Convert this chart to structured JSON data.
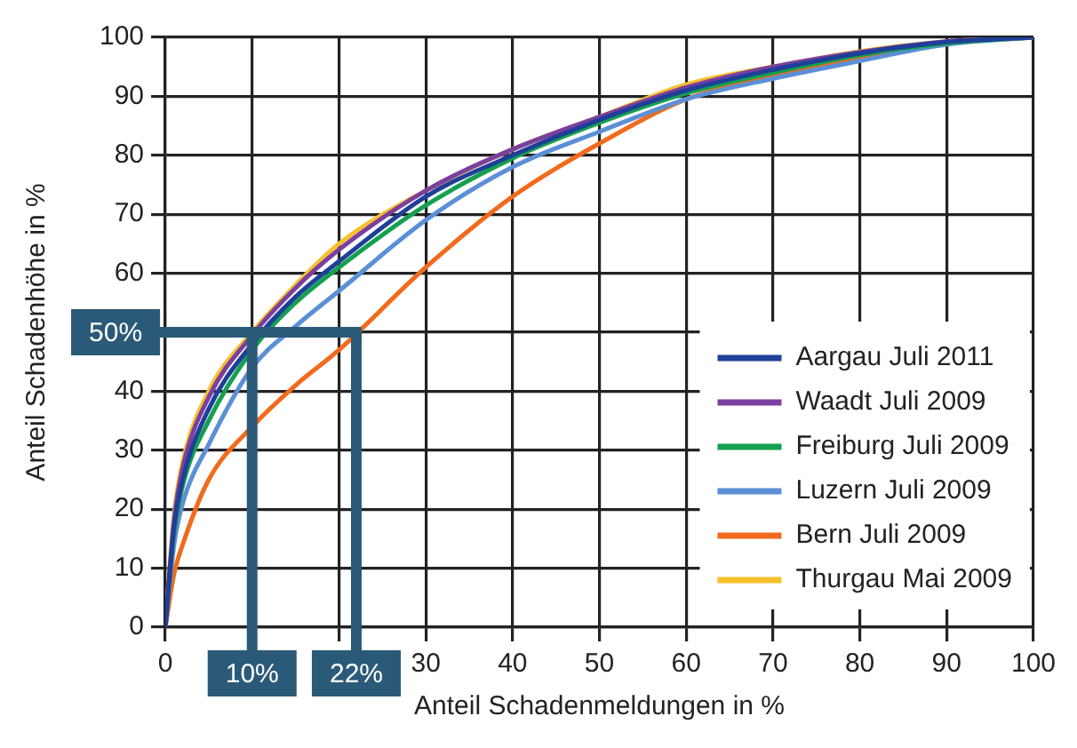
{
  "chart_data": {
    "type": "line",
    "xlabel": "Anteil Schadenmeldungen in %",
    "ylabel": "Anteil Schadenhöhe in %",
    "x": [
      0,
      1,
      2,
      5,
      10,
      15,
      20,
      30,
      40,
      50,
      60,
      70,
      80,
      90,
      100
    ],
    "series": [
      {
        "name": "Aargau Juli 2011",
        "color": "#1f3f99",
        "values": [
          0,
          17,
          25,
          37,
          48,
          56,
          62,
          73,
          80,
          86,
          91,
          94.5,
          97.3,
          99.2,
          100
        ]
      },
      {
        "name": "Waadt Juli 2009",
        "color": "#7b3fa0",
        "values": [
          0,
          18,
          27,
          39,
          49.5,
          57.5,
          64,
          74,
          81,
          86.5,
          91.5,
          95,
          97.5,
          99.3,
          100
        ]
      },
      {
        "name": "Freiburg Juli 2009",
        "color": "#14a050",
        "values": [
          0,
          16,
          24,
          35,
          47,
          55,
          61,
          71.5,
          79.5,
          85.5,
          90.5,
          94,
          97,
          99,
          100
        ]
      },
      {
        "name": "Luzern Juli 2009",
        "color": "#5b8fd6",
        "values": [
          0,
          14,
          21,
          31,
          44,
          51,
          57,
          69,
          78,
          84,
          89.5,
          93,
          96,
          98.8,
          100
        ]
      },
      {
        "name": "Bern Juli 2009",
        "color": "#f26a1b",
        "values": [
          0,
          9,
          14,
          25,
          34,
          41,
          47,
          61,
          73,
          82,
          89.5,
          93.5,
          96.5,
          99,
          100
        ]
      },
      {
        "name": "Thurgau Mai 2009",
        "color": "#f5c02a",
        "values": [
          0,
          19,
          28,
          40,
          50,
          58,
          65,
          74,
          81,
          86.5,
          92,
          95,
          97.6,
          99.3,
          100
        ]
      }
    ],
    "xlim": [
      0,
      100
    ],
    "ylim": [
      0,
      100
    ],
    "xticks": [
      0,
      {
        "value": 10,
        "label": null
      },
      {
        "value": 20,
        "label": null
      },
      30,
      40,
      50,
      60,
      70,
      80,
      90,
      100
    ],
    "yticks": [
      0,
      10,
      20,
      30,
      40,
      {
        "value": 50,
        "label": null
      },
      60,
      70,
      80,
      90,
      100
    ],
    "ref_lines": [
      {
        "axis": "y",
        "value": 50,
        "label": "50%",
        "color": "#2b5a78"
      },
      {
        "axis": "x",
        "value": 10,
        "label": "10%",
        "color": "#2b5a78"
      },
      {
        "axis": "x",
        "value": 22,
        "label": "22%",
        "color": "#2b5a78"
      }
    ],
    "grid": true,
    "legend": "bottom right",
    "marker": "none",
    "line_style": "solid"
  }
}
